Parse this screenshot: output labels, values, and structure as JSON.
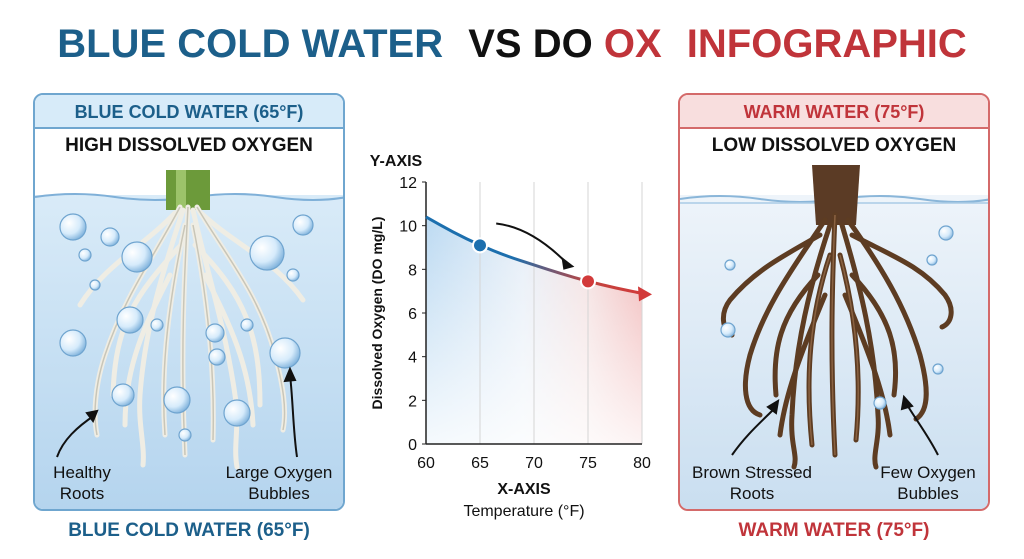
{
  "title": {
    "part1": "BLUE COLD WATER",
    "part2": "VS DO",
    "part3": "OX",
    "part4": "INFOGRAPHIC"
  },
  "colors": {
    "blue": "#1c5f8a",
    "red": "#c0343a",
    "black": "#111111",
    "cold_water": "#cfe5f5",
    "warm_water": "#e8f0f8"
  },
  "left_panel": {
    "header": "BLUE COLD WATER (65°F)",
    "subtitle": "HIGH DISSOLVED OXYGEN",
    "label_left_1": "Healthy",
    "label_left_2": "Roots",
    "label_right_1": "Large Oxygen",
    "label_right_2": "Bubbles",
    "footer": "BLUE COLD WATER (65°F)"
  },
  "right_panel": {
    "header": "WARM WATER (75°F)",
    "subtitle": "LOW DISSOLVED OXYGEN",
    "label_left_1": "Brown Stressed",
    "label_left_2": "Roots",
    "label_right_1": "Few Oxygen",
    "label_right_2": "Bubbles",
    "footer": "WARM WATER (75°F)"
  },
  "chart_data": {
    "type": "line",
    "y_axis_title": "Y-AXIS",
    "ylabel": "Dissolved Oxygen (DO mg/L)",
    "x_axis_title": "X-AXIS",
    "xlabel": "Temperature (°F)",
    "xlim": [
      60,
      80
    ],
    "ylim": [
      0,
      12
    ],
    "x_ticks": [
      "60",
      "65",
      "70",
      "75",
      "80"
    ],
    "y_ticks": [
      "0",
      "2",
      "4",
      "6",
      "8",
      "10",
      "12"
    ],
    "series": [
      {
        "x": [
          60,
          62.5,
          65,
          67.5,
          70,
          72.5,
          75,
          77.5,
          80
        ],
        "y": [
          10.4,
          9.7,
          9.1,
          8.6,
          8.2,
          7.8,
          7.45,
          7.15,
          6.9
        ]
      }
    ],
    "highlighted_points": [
      {
        "x": 65,
        "y": 9.1,
        "color": "#1c6fae"
      },
      {
        "x": 75,
        "y": 7.45,
        "color": "#d23a3a"
      }
    ]
  }
}
